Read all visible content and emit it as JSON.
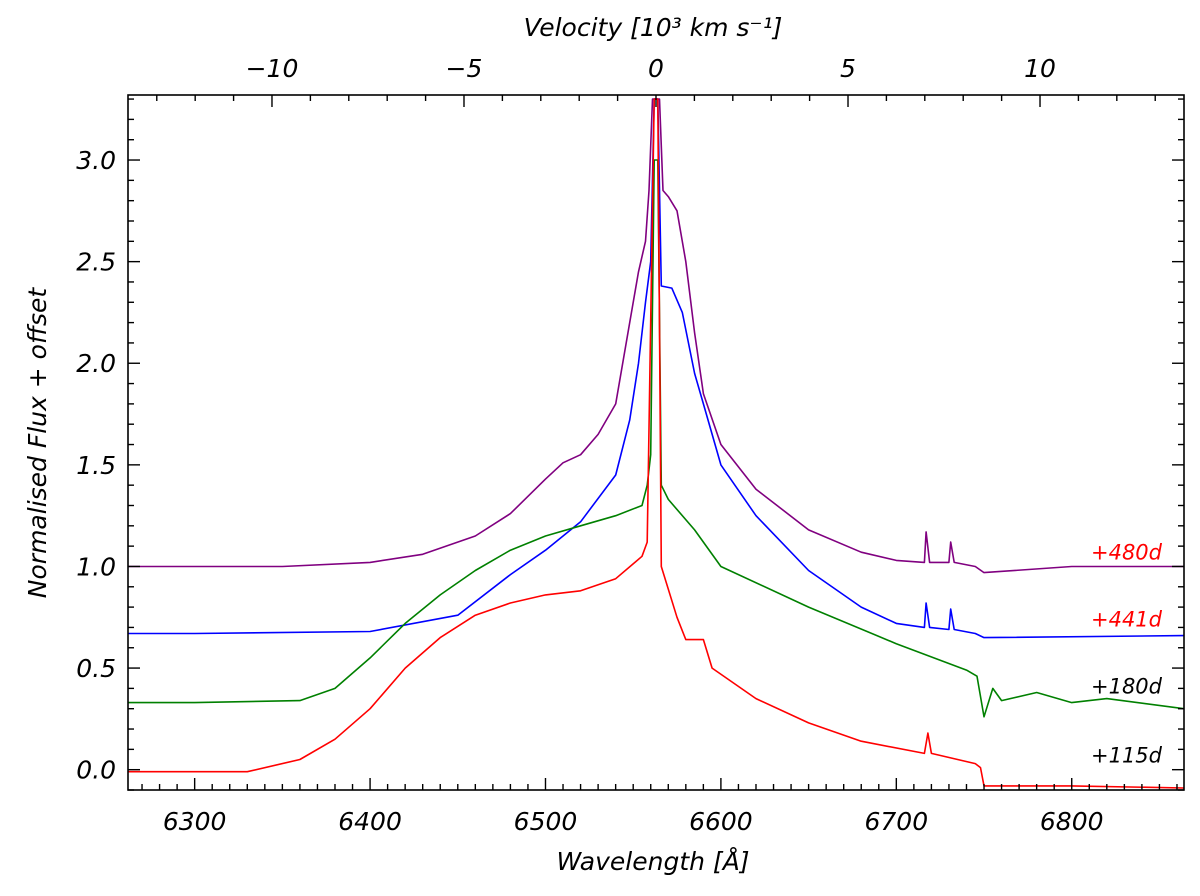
{
  "chart_data": {
    "type": "line",
    "xlabel": "Wavelength [Å]",
    "ylabel": "Normalised Flux + offset",
    "top_xlabel": "Velocity [10³ km s⁻¹]",
    "xlim": [
      6262,
      6864
    ],
    "ylim": [
      -0.1,
      3.32
    ],
    "x_ticks": [
      "6300",
      "6400",
      "6500",
      "6600",
      "6700",
      "6800"
    ],
    "y_ticks": [
      "0.0",
      "0.5",
      "1.0",
      "1.5",
      "2.0",
      "2.5",
      "3.0"
    ],
    "top_ticks": [
      "−10",
      "−5",
      "0",
      "5",
      "10"
    ],
    "rest_wavelength": 6563,
    "series": [
      {
        "name": "+480d",
        "epoch": "+480d",
        "color": "#800080",
        "label_color": "#ff0000",
        "offset": 1.0,
        "points": [
          [
            6262,
            1.0
          ],
          [
            6300,
            1.0
          ],
          [
            6350,
            1.0
          ],
          [
            6400,
            1.02
          ],
          [
            6430,
            1.06
          ],
          [
            6460,
            1.15
          ],
          [
            6480,
            1.26
          ],
          [
            6500,
            1.43
          ],
          [
            6510,
            1.51
          ],
          [
            6520,
            1.55
          ],
          [
            6530,
            1.65
          ],
          [
            6540,
            1.8
          ],
          [
            6548,
            2.2
          ],
          [
            6553,
            2.45
          ],
          [
            6557,
            2.6
          ],
          [
            6559,
            2.85
          ],
          [
            6561,
            3.3
          ],
          [
            6563,
            3.3
          ],
          [
            6565,
            3.3
          ],
          [
            6567,
            2.85
          ],
          [
            6570,
            2.82
          ],
          [
            6575,
            2.75
          ],
          [
            6580,
            2.5
          ],
          [
            6585,
            2.15
          ],
          [
            6590,
            1.85
          ],
          [
            6600,
            1.6
          ],
          [
            6620,
            1.38
          ],
          [
            6650,
            1.18
          ],
          [
            6680,
            1.07
          ],
          [
            6700,
            1.03
          ],
          [
            6716,
            1.02
          ],
          [
            6717,
            1.17
          ],
          [
            6719,
            1.02
          ],
          [
            6730,
            1.02
          ],
          [
            6731,
            1.12
          ],
          [
            6733,
            1.02
          ],
          [
            6745,
            1.0
          ],
          [
            6750,
            0.97
          ],
          [
            6800,
            1.0
          ],
          [
            6864,
            1.0
          ]
        ]
      },
      {
        "name": "+441d",
        "epoch": "+441d",
        "color": "#0000ff",
        "label_color": "#ff0000",
        "offset": 0.67,
        "points": [
          [
            6262,
            0.67
          ],
          [
            6300,
            0.67
          ],
          [
            6400,
            0.68
          ],
          [
            6450,
            0.76
          ],
          [
            6480,
            0.96
          ],
          [
            6500,
            1.08
          ],
          [
            6520,
            1.22
          ],
          [
            6540,
            1.45
          ],
          [
            6548,
            1.72
          ],
          [
            6553,
            2.0
          ],
          [
            6557,
            2.3
          ],
          [
            6560,
            2.5
          ],
          [
            6562,
            3.3
          ],
          [
            6564,
            3.3
          ],
          [
            6566,
            2.38
          ],
          [
            6572,
            2.37
          ],
          [
            6578,
            2.25
          ],
          [
            6585,
            1.95
          ],
          [
            6590,
            1.8
          ],
          [
            6600,
            1.5
          ],
          [
            6620,
            1.25
          ],
          [
            6650,
            0.98
          ],
          [
            6680,
            0.8
          ],
          [
            6700,
            0.72
          ],
          [
            6716,
            0.7
          ],
          [
            6717,
            0.82
          ],
          [
            6719,
            0.7
          ],
          [
            6730,
            0.69
          ],
          [
            6731,
            0.79
          ],
          [
            6733,
            0.69
          ],
          [
            6745,
            0.67
          ],
          [
            6750,
            0.65
          ],
          [
            6864,
            0.66
          ]
        ]
      },
      {
        "name": "+180d",
        "epoch": "+180d",
        "color": "#008000",
        "label_color": "#000000",
        "offset": 0.34,
        "points": [
          [
            6262,
            0.33
          ],
          [
            6300,
            0.33
          ],
          [
            6360,
            0.34
          ],
          [
            6380,
            0.4
          ],
          [
            6400,
            0.55
          ],
          [
            6420,
            0.72
          ],
          [
            6440,
            0.86
          ],
          [
            6460,
            0.98
          ],
          [
            6480,
            1.08
          ],
          [
            6500,
            1.15
          ],
          [
            6520,
            1.2
          ],
          [
            6540,
            1.25
          ],
          [
            6555,
            1.3
          ],
          [
            6558,
            1.4
          ],
          [
            6560,
            1.55
          ],
          [
            6562,
            3.0
          ],
          [
            6564,
            3.0
          ],
          [
            6566,
            1.4
          ],
          [
            6570,
            1.33
          ],
          [
            6585,
            1.18
          ],
          [
            6600,
            1.0
          ],
          [
            6650,
            0.8
          ],
          [
            6700,
            0.62
          ],
          [
            6740,
            0.49
          ],
          [
            6746,
            0.46
          ],
          [
            6750,
            0.26
          ],
          [
            6755,
            0.4
          ],
          [
            6760,
            0.34
          ],
          [
            6780,
            0.38
          ],
          [
            6800,
            0.33
          ],
          [
            6820,
            0.35
          ],
          [
            6864,
            0.3
          ]
        ]
      },
      {
        "name": "+115d",
        "epoch": "+115d",
        "color": "#ff0000",
        "label_color": "#000000",
        "offset": 0.0,
        "points": [
          [
            6262,
            -0.01
          ],
          [
            6330,
            -0.01
          ],
          [
            6360,
            0.05
          ],
          [
            6380,
            0.15
          ],
          [
            6400,
            0.3
          ],
          [
            6420,
            0.5
          ],
          [
            6440,
            0.65
          ],
          [
            6460,
            0.76
          ],
          [
            6480,
            0.82
          ],
          [
            6500,
            0.86
          ],
          [
            6520,
            0.88
          ],
          [
            6540,
            0.94
          ],
          [
            6555,
            1.05
          ],
          [
            6558,
            1.12
          ],
          [
            6562,
            3.3
          ],
          [
            6564,
            3.3
          ],
          [
            6566,
            1.0
          ],
          [
            6575,
            0.75
          ],
          [
            6580,
            0.64
          ],
          [
            6590,
            0.64
          ],
          [
            6595,
            0.5
          ],
          [
            6620,
            0.35
          ],
          [
            6650,
            0.23
          ],
          [
            6680,
            0.14
          ],
          [
            6716,
            0.08
          ],
          [
            6718,
            0.18
          ],
          [
            6720,
            0.08
          ],
          [
            6745,
            0.03
          ],
          [
            6748,
            0.01
          ],
          [
            6750,
            -0.08
          ],
          [
            6800,
            -0.08
          ],
          [
            6864,
            -0.09
          ]
        ]
      }
    ]
  }
}
